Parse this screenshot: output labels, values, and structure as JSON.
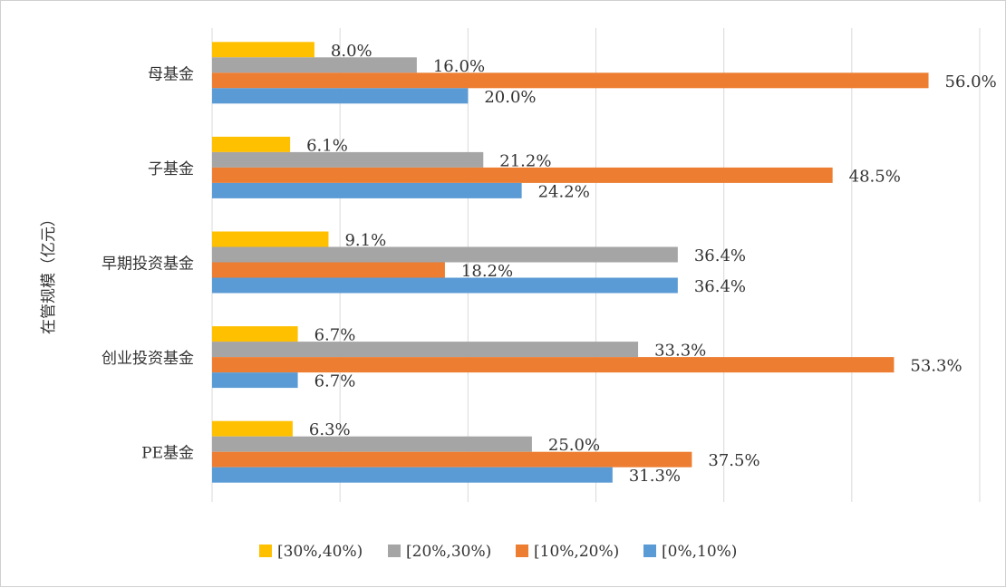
{
  "chart_data": {
    "type": "bar",
    "orientation": "horizontal",
    "ylabel": "在管规模（亿元）",
    "categories": [
      "母基金",
      "子基金",
      "早期投资基金",
      "创业投资基金",
      "PE基金"
    ],
    "series": [
      {
        "name": "[30%,40%)",
        "color": "#FFC000",
        "values": [
          8.0,
          6.1,
          9.1,
          6.7,
          6.3
        ],
        "labels": [
          "8.0%",
          "6.1%",
          "9.1%",
          "6.7%",
          "6.3%"
        ]
      },
      {
        "name": "[20%,30%)",
        "color": "#A5A5A5",
        "values": [
          16.0,
          21.2,
          36.4,
          33.3,
          25.0
        ],
        "labels": [
          "16.0%",
          "21.2%",
          "36.4%",
          "33.3%",
          "25.0%"
        ]
      },
      {
        "name": "[10%,20%)",
        "color": "#ED7D31",
        "values": [
          56.0,
          48.5,
          18.2,
          53.3,
          37.5
        ],
        "labels": [
          "56.0%",
          "48.5%",
          "18.2%",
          "53.3%",
          "37.5%"
        ]
      },
      {
        "name": "[0%,10%)",
        "color": "#5B9BD5",
        "values": [
          20.0,
          24.2,
          36.4,
          6.7,
          31.3
        ],
        "labels": [
          "20.0%",
          "24.2%",
          "36.4%",
          "6.7%",
          "31.3%"
        ]
      }
    ],
    "xlim": [
      0,
      60
    ],
    "grid": true,
    "legend_position": "bottom",
    "gridline_color": "#d9d9d9"
  }
}
